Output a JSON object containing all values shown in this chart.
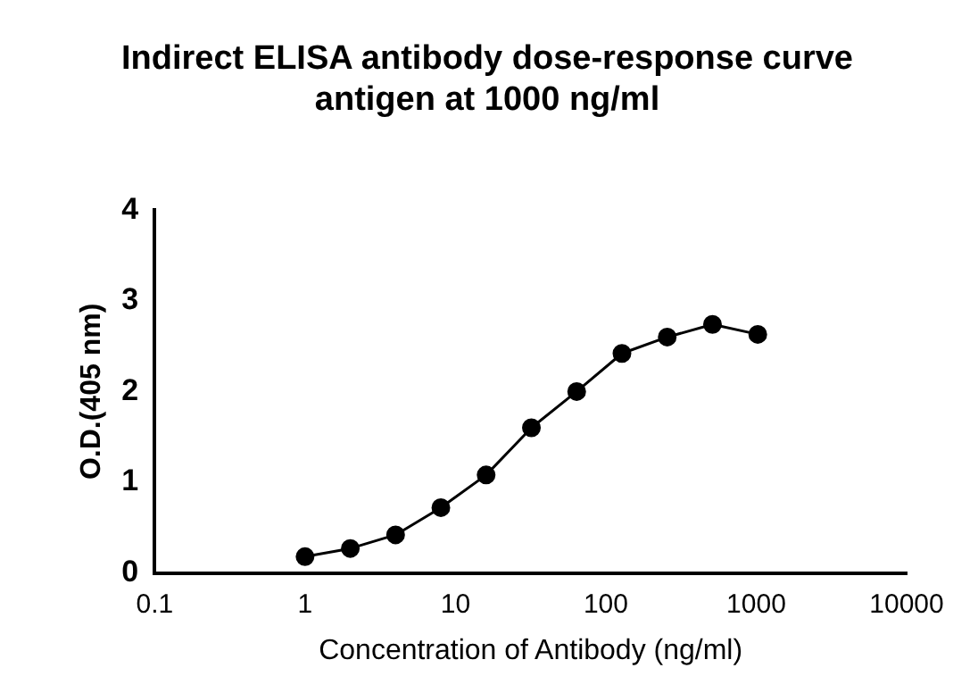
{
  "chart_data": {
    "type": "line",
    "title": "Indirect ELISA antibody dose-response curve\nantigen at 1000 ng/ml",
    "xlabel": "Concentration of Antibody (ng/ml)",
    "ylabel": "O.D.(405 nm)",
    "x": [
      1,
      2,
      4,
      8,
      16,
      32,
      64,
      128,
      256,
      512,
      1024
    ],
    "series": [
      {
        "color": "#000000",
        "values": [
          0.18,
          0.27,
          0.42,
          0.72,
          1.08,
          1.6,
          2.0,
          2.42,
          2.6,
          2.74,
          2.63
        ]
      }
    ],
    "log": "x",
    "xlim": [
      0.1,
      10000
    ],
    "xticks": [
      0.1,
      1,
      10,
      100,
      1000,
      10000
    ],
    "ylim": [
      0,
      4
    ],
    "yticks": [
      0,
      1,
      2,
      3,
      4
    ],
    "grid": false,
    "legend": false,
    "marker": "circle",
    "line_style": "solid"
  }
}
